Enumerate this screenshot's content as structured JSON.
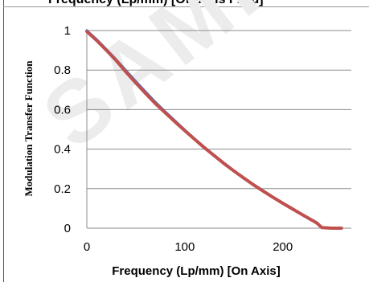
{
  "header": {
    "caption": "Frequency (Lp/mm) [Off-Axis Field]",
    "watermark": "SAMPLE"
  },
  "chart_data": {
    "type": "line",
    "title": "",
    "xlabel": "Frequency (Lp/mm) [On Axis]",
    "ylabel": "Modulation Transfer Function",
    "xlim": [
      0,
      270
    ],
    "ylim": [
      0,
      1
    ],
    "xticks": [
      "0",
      "100",
      "200"
    ],
    "yticks": [
      "0",
      "0.2",
      "0.4",
      "0.6",
      "0.8",
      "1"
    ],
    "grid": "horizontal",
    "legend": "none",
    "series": [
      {
        "color": "#4472c4",
        "x": [
          0,
          10,
          20,
          30,
          40,
          50,
          60,
          70,
          80,
          90,
          100,
          110,
          120,
          130,
          140,
          150,
          160,
          170,
          180,
          190,
          200,
          210,
          220,
          230,
          235,
          240,
          250,
          260
        ],
        "y": [
          1.0,
          0.955,
          0.905,
          0.853,
          0.798,
          0.743,
          0.69,
          0.638,
          0.59,
          0.543,
          0.497,
          0.453,
          0.41,
          0.37,
          0.33,
          0.292,
          0.256,
          0.222,
          0.19,
          0.158,
          0.128,
          0.099,
          0.07,
          0.042,
          0.028,
          0.003,
          0.0,
          0.0
        ]
      },
      {
        "color": "#c0504d",
        "x": [
          0,
          10,
          20,
          30,
          40,
          50,
          60,
          70,
          80,
          90,
          100,
          110,
          120,
          130,
          140,
          150,
          160,
          170,
          180,
          190,
          200,
          210,
          220,
          230,
          235,
          240,
          250,
          260
        ],
        "y": [
          0.995,
          0.95,
          0.9,
          0.848,
          0.79,
          0.735,
          0.682,
          0.63,
          0.584,
          0.538,
          0.493,
          0.45,
          0.407,
          0.367,
          0.327,
          0.29,
          0.254,
          0.22,
          0.188,
          0.156,
          0.126,
          0.097,
          0.068,
          0.04,
          0.025,
          0.003,
          0.0,
          0.0
        ]
      }
    ]
  }
}
